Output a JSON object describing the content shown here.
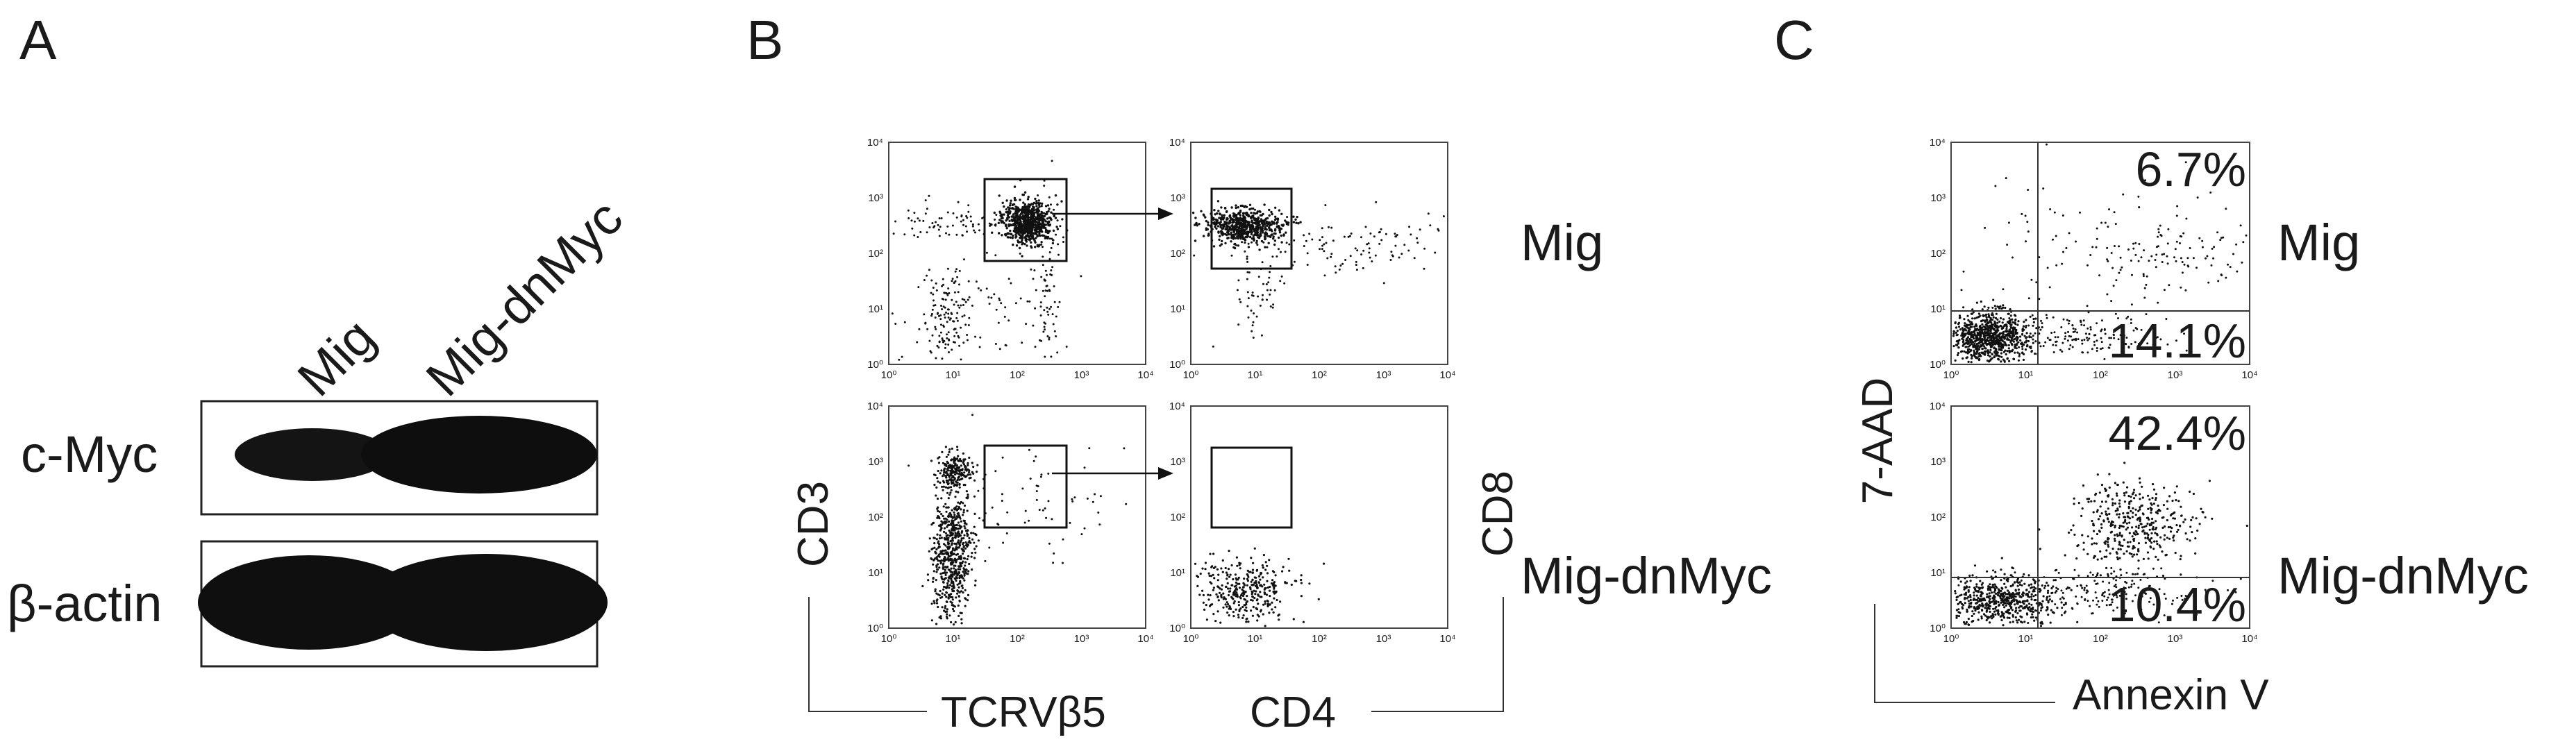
{
  "panels": {
    "A": {
      "letter": "A",
      "lanes": [
        "Mig",
        "Mig-dnMyc"
      ],
      "blots": [
        {
          "label": "c-Myc"
        },
        {
          "label": "β-actin"
        }
      ]
    },
    "B": {
      "letter": "B",
      "x_axis_left": "TCRVβ5",
      "y_axis_left": "CD3",
      "x_axis_right": "CD4",
      "y_axis_right": "CD8",
      "rows": [
        {
          "condition": "Mig"
        },
        {
          "condition": "Mig-dnMyc"
        }
      ]
    },
    "C": {
      "letter": "C",
      "x_axis": "Annexin V",
      "y_axis": "7-AAD",
      "rows": [
        {
          "condition": "Mig",
          "upper_right_pct": "6.7%",
          "lower_right_pct": "14.1%"
        },
        {
          "condition": "Mig-dnMyc",
          "upper_right_pct": "42.4%",
          "lower_right_pct": "10.4%"
        }
      ]
    }
  },
  "tick_labels": [
    "10⁰",
    "10¹",
    "10²",
    "10³",
    "10⁴"
  ]
}
